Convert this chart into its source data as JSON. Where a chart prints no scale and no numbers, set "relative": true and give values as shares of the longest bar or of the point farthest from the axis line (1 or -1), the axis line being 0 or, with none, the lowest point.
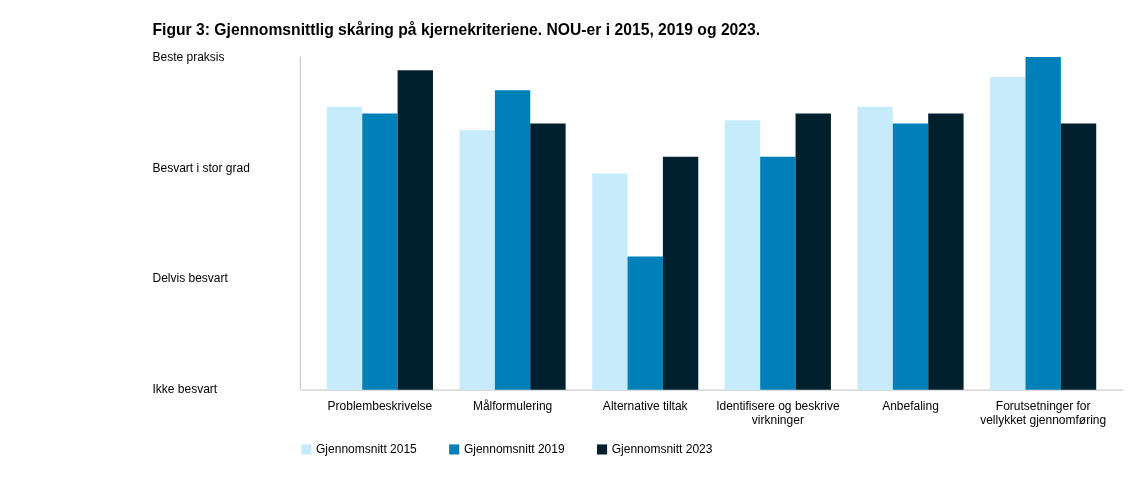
{
  "chart_data": {
    "type": "bar",
    "title": "Figur 3: Gjennomsnittlig skåring på kjernekriteriene. NOU-er i 2015, 2019 og 2023.",
    "categories": [
      "Problembeskrivelse",
      "Målformulering",
      "Alternative tiltak",
      "Identifisere og beskrive virkninger",
      "Anbefaling",
      "Forutsetninger for vellykket gjennomføring"
    ],
    "series": [
      {
        "name": "Gjennomsnitt  2015",
        "color": "#c6ebfb",
        "values": [
          0.85,
          0.78,
          0.65,
          0.81,
          0.85,
          0.94
        ]
      },
      {
        "name": "Gjennomsnitt  2019",
        "color": "#0080b8",
        "values": [
          0.83,
          0.9,
          0.4,
          0.7,
          0.8,
          1
        ]
      },
      {
        "name": "Gjennomsnitt  2023",
        "color": "#00202e",
        "values": [
          0.96,
          0.8,
          0.7,
          0.83,
          0.83,
          0.8
        ]
      }
    ],
    "relative": true,
    "annotations": [
      "Beste praksis",
      "Besvart i stor grad",
      "Delvis besvart",
      "Ikke besvart"
    ],
    "legend": "bottom"
  }
}
